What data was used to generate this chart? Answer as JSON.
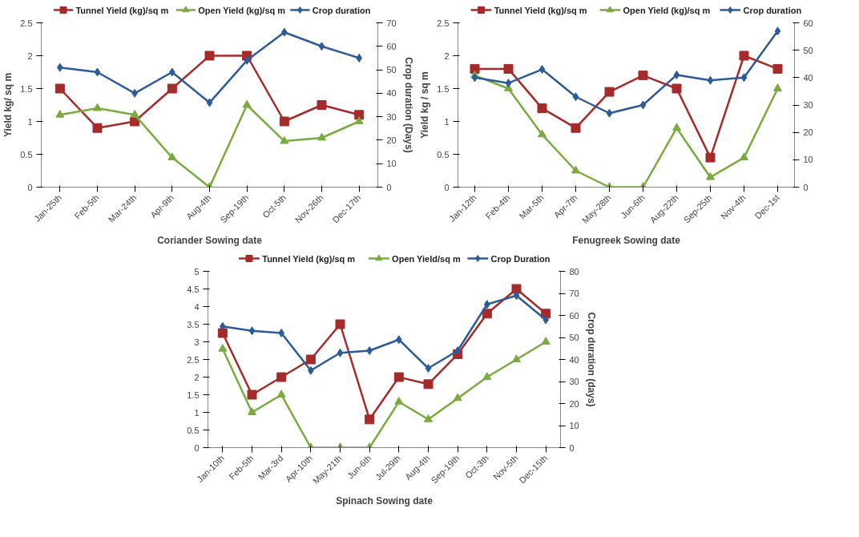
{
  "chart_data": [
    {
      "type": "line",
      "categories": [
        "Jan-25th",
        "Feb-5th",
        "Mar-24th",
        "Apr-9th",
        "Aug-4th",
        "Sep-19th",
        "Oct-5th",
        "Nov-26th",
        "Dec-17th"
      ],
      "xlabel": "Coriander Sowing date",
      "ylabel": "Yield kg/ sq m",
      "y2label": "Crop duration (Days)",
      "ylim": [
        0,
        2.5
      ],
      "yticks": [
        0,
        0.5,
        1,
        1.5,
        2,
        2.5
      ],
      "y2lim": [
        0,
        70
      ],
      "y2ticks": [
        0,
        10,
        20,
        30,
        40,
        50,
        60,
        70
      ],
      "grid": false,
      "legend": "top",
      "series": [
        {
          "name": "Tunnel Yield (kg)/sq m",
          "color": "#a52a2a",
          "marker": "square",
          "values": [
            1.5,
            0.9,
            1.0,
            1.5,
            2.0,
            2.0,
            1.0,
            1.25,
            1.1
          ]
        },
        {
          "name": "Open Yield (kg)/sq m",
          "color": "#7aab3e",
          "marker": "triangle",
          "values": [
            1.1,
            1.2,
            1.1,
            0.45,
            0,
            1.25,
            0.7,
            0.75,
            1.0
          ]
        },
        {
          "name": "Crop duration",
          "color": "#2d5b98",
          "marker": "diamond",
          "axis": "y2",
          "values": [
            51,
            49,
            40,
            49,
            36,
            54,
            66,
            60,
            55
          ]
        }
      ]
    },
    {
      "type": "line",
      "categories": [
        "Jan-12th",
        "Feb-4th",
        "Mar-5th",
        "Apr-7th",
        "May-28th",
        "Jun-6th",
        "Aug-22th",
        "Sep-25th",
        "Nov-4th",
        "Dec-1st"
      ],
      "xlabel": "Fenugreek Sowing date",
      "ylabel": "Yield kg / sq m",
      "ylim": [
        0,
        2.5
      ],
      "yticks": [
        0,
        0.5,
        1,
        1.5,
        2,
        2.5
      ],
      "y2lim": [
        0,
        60
      ],
      "y2ticks": [
        0,
        10,
        20,
        30,
        40,
        50,
        60
      ],
      "grid": false,
      "legend": "top",
      "series": [
        {
          "name": "Tunnel Yield (kg)/sq m",
          "color": "#a52a2a",
          "marker": "square",
          "values": [
            1.8,
            1.8,
            1.2,
            0.9,
            1.45,
            1.7,
            1.5,
            0.45,
            2.0,
            1.8
          ]
        },
        {
          "name": "Open Yield (kg)/sq m",
          "color": "#7aab3e",
          "marker": "triangle",
          "values": [
            1.7,
            1.5,
            0.8,
            0.25,
            0,
            0,
            0.9,
            0.15,
            0.45,
            1.5
          ]
        },
        {
          "name": "Crop duration",
          "color": "#2d5b98",
          "marker": "diamond",
          "axis": "y2",
          "values": [
            40,
            38,
            43,
            33,
            27,
            30,
            41,
            39,
            40,
            57
          ]
        }
      ]
    },
    {
      "type": "line",
      "categories": [
        "Jan-10th",
        "Feb-5th",
        "Mar-3rd",
        "Apr-10th",
        "May-21th",
        "Jun-6th",
        "Jul-29th",
        "Aug-4th",
        "Sep-19th",
        "Oct-3th",
        "Nov-5th",
        "Dec-15th"
      ],
      "xlabel": "Spinach Sowing date",
      "y2label": "Crop duration (days)",
      "ylim": [
        0,
        5
      ],
      "yticks": [
        0,
        0.5,
        1,
        1.5,
        2,
        2.5,
        3,
        3.5,
        4,
        4.5,
        5
      ],
      "y2lim": [
        0,
        80
      ],
      "y2ticks": [
        0,
        10,
        20,
        30,
        40,
        50,
        60,
        70,
        80
      ],
      "grid": false,
      "legend": "top",
      "series": [
        {
          "name": "Tunnel Yield (kg)/sq m",
          "color": "#a52a2a",
          "marker": "square",
          "values": [
            3.25,
            1.5,
            2.0,
            2.5,
            3.5,
            0.8,
            2.0,
            1.8,
            2.65,
            3.8,
            4.5,
            3.8
          ]
        },
        {
          "name": "Open Yield/sq m",
          "color": "#7aab3e",
          "marker": "triangle",
          "values": [
            2.8,
            1.0,
            1.5,
            0,
            0,
            0,
            1.3,
            0.8,
            1.4,
            2.0,
            2.5,
            3.0
          ]
        },
        {
          "name": "Crop Duration",
          "color": "#2d5b98",
          "marker": "diamond",
          "axis": "y2",
          "values": [
            55,
            53,
            52,
            35,
            43,
            44,
            49,
            36,
            44,
            65,
            69,
            58
          ]
        }
      ]
    }
  ]
}
